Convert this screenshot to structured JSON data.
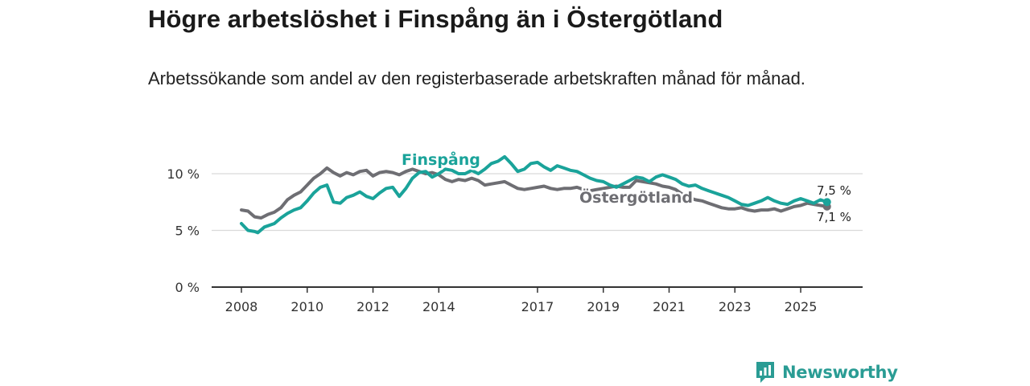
{
  "header": {
    "title": "Högre arbetslöshet i Finspång än i Östergötland",
    "subtitle": "Arbetssökande som andel av den registerbaserade arbetskraften månad för månad."
  },
  "branding": {
    "name": "Newsworthy",
    "icon": "newsworthy-logo-icon",
    "color": "#2a9c94"
  },
  "chart_data": {
    "type": "line",
    "title": "Högre arbetslöshet i Finspång än i Östergötland",
    "subtitle": "Arbetssökande som andel av den registerbaserade arbetskraften månad för månad.",
    "xlabel": "",
    "ylabel": "",
    "xlim": [
      2008,
      2026.1
    ],
    "ylim": [
      0,
      10
    ],
    "y_ticks": [
      {
        "value": 0,
        "label": "0 %"
      },
      {
        "value": 5,
        "label": "5 %"
      },
      {
        "value": 10,
        "label": "10 %"
      }
    ],
    "x_ticks": [
      {
        "value": 2008,
        "label": "2008"
      },
      {
        "value": 2010,
        "label": "2010"
      },
      {
        "value": 2012,
        "label": "2012"
      },
      {
        "value": 2014,
        "label": "2014"
      },
      {
        "value": 2017,
        "label": "2017"
      },
      {
        "value": 2019,
        "label": "2019"
      },
      {
        "value": 2021,
        "label": "2021"
      },
      {
        "value": 2023,
        "label": "2023"
      },
      {
        "value": 2025,
        "label": "2025"
      }
    ],
    "grid": true,
    "series": [
      {
        "name": "Östergötland",
        "color": "#6e6e73",
        "label": "Östergötland",
        "end_label": "7,1 %",
        "points": [
          [
            2008.0,
            6.8
          ],
          [
            2008.2,
            6.7
          ],
          [
            2008.4,
            6.2
          ],
          [
            2008.6,
            6.1
          ],
          [
            2008.8,
            6.4
          ],
          [
            2009.0,
            6.6
          ],
          [
            2009.2,
            7.0
          ],
          [
            2009.4,
            7.7
          ],
          [
            2009.6,
            8.1
          ],
          [
            2009.8,
            8.4
          ],
          [
            2010.0,
            9.0
          ],
          [
            2010.2,
            9.6
          ],
          [
            2010.4,
            10.0
          ],
          [
            2010.6,
            10.5
          ],
          [
            2010.8,
            10.1
          ],
          [
            2011.0,
            9.8
          ],
          [
            2011.2,
            10.1
          ],
          [
            2011.4,
            9.9
          ],
          [
            2011.6,
            10.2
          ],
          [
            2011.8,
            10.3
          ],
          [
            2012.0,
            9.8
          ],
          [
            2012.2,
            10.1
          ],
          [
            2012.4,
            10.2
          ],
          [
            2012.6,
            10.1
          ],
          [
            2012.8,
            9.9
          ],
          [
            2013.0,
            10.2
          ],
          [
            2013.2,
            10.4
          ],
          [
            2013.4,
            10.2
          ],
          [
            2013.6,
            10.0
          ],
          [
            2013.8,
            10.1
          ],
          [
            2014.0,
            9.9
          ],
          [
            2014.2,
            9.5
          ],
          [
            2014.4,
            9.3
          ],
          [
            2014.6,
            9.5
          ],
          [
            2014.8,
            9.4
          ],
          [
            2015.0,
            9.6
          ],
          [
            2015.2,
            9.4
          ],
          [
            2015.4,
            9.0
          ],
          [
            2015.6,
            9.1
          ],
          [
            2015.8,
            9.2
          ],
          [
            2016.0,
            9.3
          ],
          [
            2016.2,
            9.0
          ],
          [
            2016.4,
            8.7
          ],
          [
            2016.6,
            8.6
          ],
          [
            2016.8,
            8.7
          ],
          [
            2017.0,
            8.8
          ],
          [
            2017.2,
            8.9
          ],
          [
            2017.4,
            8.7
          ],
          [
            2017.6,
            8.6
          ],
          [
            2017.8,
            8.7
          ],
          [
            2018.0,
            8.7
          ],
          [
            2018.2,
            8.8
          ],
          [
            2018.4,
            8.6
          ],
          [
            2018.6,
            8.5
          ],
          [
            2018.8,
            8.6
          ],
          [
            2019.0,
            8.7
          ],
          [
            2019.2,
            8.8
          ],
          [
            2019.4,
            8.9
          ],
          [
            2019.6,
            8.8
          ],
          [
            2019.8,
            8.8
          ],
          [
            2020.0,
            9.4
          ],
          [
            2020.2,
            9.3
          ],
          [
            2020.4,
            9.2
          ],
          [
            2020.6,
            9.1
          ],
          [
            2020.8,
            8.9
          ],
          [
            2021.0,
            8.8
          ],
          [
            2021.2,
            8.6
          ],
          [
            2021.4,
            8.2
          ],
          [
            2021.6,
            7.9
          ],
          [
            2021.8,
            7.7
          ],
          [
            2022.0,
            7.6
          ],
          [
            2022.2,
            7.4
          ],
          [
            2022.4,
            7.2
          ],
          [
            2022.6,
            7.0
          ],
          [
            2022.8,
            6.9
          ],
          [
            2023.0,
            6.9
          ],
          [
            2023.2,
            7.0
          ],
          [
            2023.4,
            6.8
          ],
          [
            2023.6,
            6.7
          ],
          [
            2023.8,
            6.8
          ],
          [
            2024.0,
            6.8
          ],
          [
            2024.2,
            6.9
          ],
          [
            2024.4,
            6.7
          ],
          [
            2024.6,
            6.9
          ],
          [
            2024.8,
            7.1
          ],
          [
            2025.0,
            7.2
          ],
          [
            2025.2,
            7.4
          ],
          [
            2025.4,
            7.3
          ],
          [
            2025.6,
            7.2
          ],
          [
            2025.8,
            7.1
          ]
        ]
      },
      {
        "name": "Finspång",
        "color": "#1aa39a",
        "label": "Finspång",
        "end_label": "7,5 %",
        "points": [
          [
            2008.0,
            5.6
          ],
          [
            2008.2,
            5.0
          ],
          [
            2008.4,
            4.9
          ],
          [
            2008.5,
            4.8
          ],
          [
            2008.7,
            5.3
          ],
          [
            2009.0,
            5.6
          ],
          [
            2009.2,
            6.1
          ],
          [
            2009.4,
            6.5
          ],
          [
            2009.6,
            6.8
          ],
          [
            2009.8,
            7.0
          ],
          [
            2010.0,
            7.6
          ],
          [
            2010.2,
            8.3
          ],
          [
            2010.4,
            8.8
          ],
          [
            2010.6,
            9.0
          ],
          [
            2010.8,
            7.5
          ],
          [
            2011.0,
            7.4
          ],
          [
            2011.2,
            7.9
          ],
          [
            2011.4,
            8.1
          ],
          [
            2011.6,
            8.4
          ],
          [
            2011.8,
            8.0
          ],
          [
            2012.0,
            7.8
          ],
          [
            2012.2,
            8.3
          ],
          [
            2012.4,
            8.7
          ],
          [
            2012.6,
            8.8
          ],
          [
            2012.8,
            8.0
          ],
          [
            2013.0,
            8.7
          ],
          [
            2013.2,
            9.6
          ],
          [
            2013.4,
            10.1
          ],
          [
            2013.6,
            10.2
          ],
          [
            2013.8,
            9.7
          ],
          [
            2014.0,
            10.0
          ],
          [
            2014.2,
            10.4
          ],
          [
            2014.4,
            10.3
          ],
          [
            2014.6,
            10.0
          ],
          [
            2014.8,
            10.0
          ],
          [
            2015.0,
            10.3
          ],
          [
            2015.2,
            10.0
          ],
          [
            2015.4,
            10.4
          ],
          [
            2015.6,
            10.9
          ],
          [
            2015.8,
            11.1
          ],
          [
            2016.0,
            11.5
          ],
          [
            2016.2,
            10.9
          ],
          [
            2016.4,
            10.2
          ],
          [
            2016.6,
            10.4
          ],
          [
            2016.8,
            10.9
          ],
          [
            2017.0,
            11.0
          ],
          [
            2017.2,
            10.6
          ],
          [
            2017.4,
            10.3
          ],
          [
            2017.6,
            10.7
          ],
          [
            2017.8,
            10.5
          ],
          [
            2018.0,
            10.3
          ],
          [
            2018.2,
            10.2
          ],
          [
            2018.4,
            9.9
          ],
          [
            2018.6,
            9.6
          ],
          [
            2018.8,
            9.4
          ],
          [
            2019.0,
            9.3
          ],
          [
            2019.2,
            9.0
          ],
          [
            2019.4,
            8.8
          ],
          [
            2019.6,
            9.1
          ],
          [
            2019.8,
            9.4
          ],
          [
            2020.0,
            9.7
          ],
          [
            2020.2,
            9.6
          ],
          [
            2020.4,
            9.3
          ],
          [
            2020.6,
            9.7
          ],
          [
            2020.8,
            9.9
          ],
          [
            2021.0,
            9.7
          ],
          [
            2021.2,
            9.5
          ],
          [
            2021.4,
            9.1
          ],
          [
            2021.6,
            8.9
          ],
          [
            2021.8,
            9.0
          ],
          [
            2022.0,
            8.7
          ],
          [
            2022.2,
            8.5
          ],
          [
            2022.4,
            8.3
          ],
          [
            2022.6,
            8.1
          ],
          [
            2022.8,
            7.9
          ],
          [
            2023.0,
            7.6
          ],
          [
            2023.2,
            7.3
          ],
          [
            2023.4,
            7.2
          ],
          [
            2023.6,
            7.4
          ],
          [
            2023.8,
            7.6
          ],
          [
            2024.0,
            7.9
          ],
          [
            2024.2,
            7.6
          ],
          [
            2024.4,
            7.4
          ],
          [
            2024.6,
            7.3
          ],
          [
            2024.8,
            7.6
          ],
          [
            2025.0,
            7.8
          ],
          [
            2025.2,
            7.6
          ],
          [
            2025.4,
            7.4
          ],
          [
            2025.6,
            7.7
          ],
          [
            2025.8,
            7.5
          ]
        ]
      }
    ]
  }
}
